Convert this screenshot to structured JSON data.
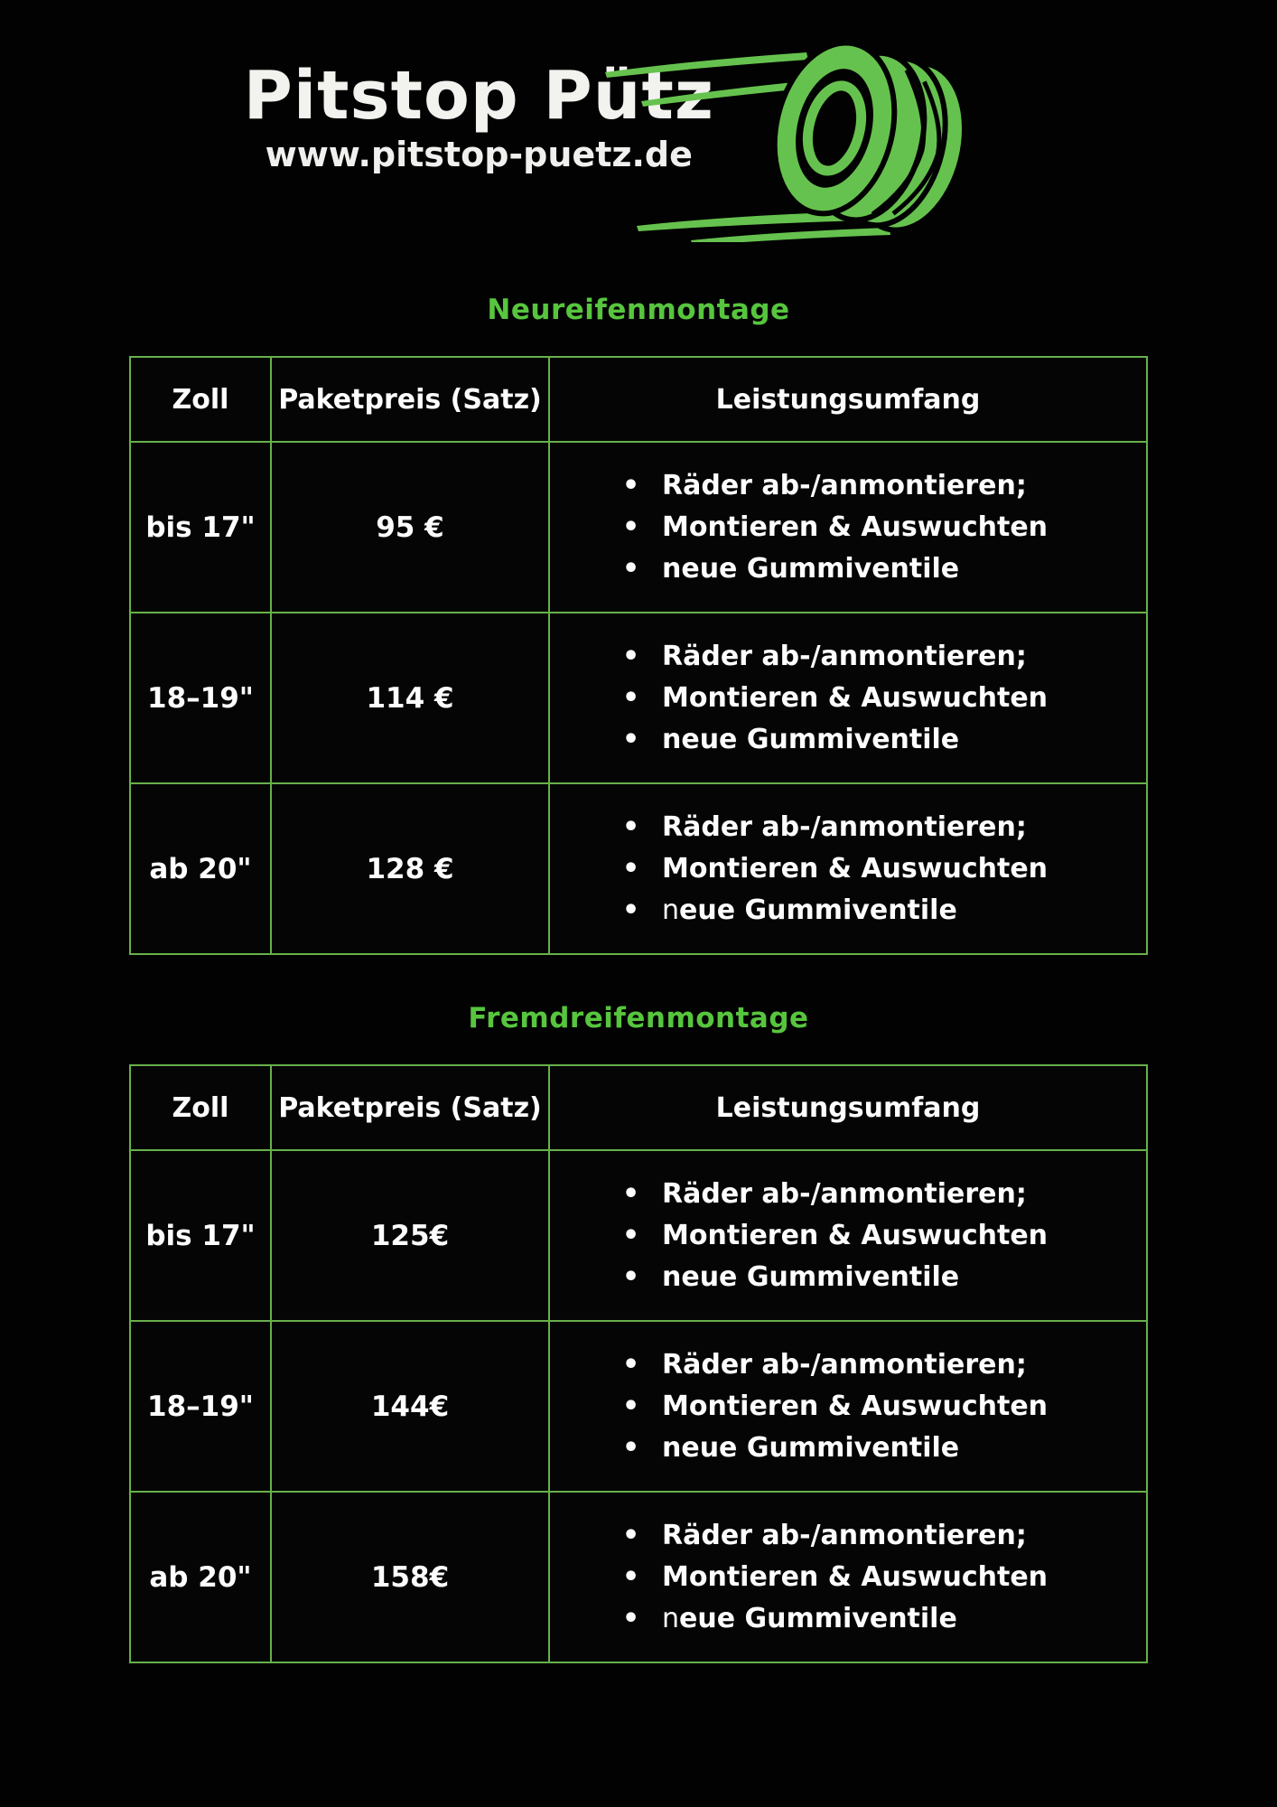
{
  "brand": {
    "title": "Pitstop Pütz",
    "website": "www.pitstop-puetz.de",
    "logo_icon": "tire-icon"
  },
  "colors": {
    "background": "#020202",
    "accent_green": "#57c53e",
    "border_green": "#67b04a",
    "tire_green": "#66c24e",
    "text_white": "#f2f2ef"
  },
  "sections": [
    {
      "heading": "Neureifenmontage",
      "table": {
        "headers": [
          "Zoll",
          "Paketpreis (Satz)",
          "Leistungsumfang"
        ],
        "rows": [
          {
            "zoll": "bis 17\"",
            "preis": "95 €",
            "leistungen": [
              {
                "text": "Räder ab-/anmontieren;"
              },
              {
                "text": "Montieren & Auswuchten"
              },
              {
                "text": " neue Gummiventile"
              }
            ]
          },
          {
            "zoll": "18–19\"",
            "preis": "114 €",
            "leistungen": [
              {
                "text": "Räder ab-/anmontieren;"
              },
              {
                "text": "Montieren & Auswuchten"
              },
              {
                "text": " neue Gummiventile"
              }
            ]
          },
          {
            "zoll": "ab 20\"",
            "preis": "128 €",
            "leistungen": [
              {
                "text": "Räder ab-/anmontieren;"
              },
              {
                "text": "Montieren & Auswuchten"
              },
              {
                "text": "neue Gummiventile",
                "light_first": true
              }
            ]
          }
        ]
      }
    },
    {
      "heading": "Fremdreifenmontage",
      "table": {
        "headers": [
          "Zoll",
          "Paketpreis (Satz)",
          "Leistungsumfang"
        ],
        "rows": [
          {
            "zoll": "bis 17\"",
            "preis": "125€",
            "leistungen": [
              {
                "text": "Räder ab-/anmontieren;"
              },
              {
                "text": "Montieren & Auswuchten"
              },
              {
                "text": " neue Gummiventile"
              }
            ]
          },
          {
            "zoll": "18–19\"",
            "preis": "144€",
            "leistungen": [
              {
                "text": "Räder ab-/anmontieren;"
              },
              {
                "text": "Montieren & Auswuchten"
              },
              {
                "text": " neue Gummiventile"
              }
            ]
          },
          {
            "zoll": "ab 20\"",
            "preis": "158€",
            "leistungen": [
              {
                "text": "Räder ab-/anmontieren;"
              },
              {
                "text": "Montieren & Auswuchten"
              },
              {
                "text": "neue Gummiventile",
                "light_first": true
              }
            ]
          }
        ]
      }
    }
  ]
}
